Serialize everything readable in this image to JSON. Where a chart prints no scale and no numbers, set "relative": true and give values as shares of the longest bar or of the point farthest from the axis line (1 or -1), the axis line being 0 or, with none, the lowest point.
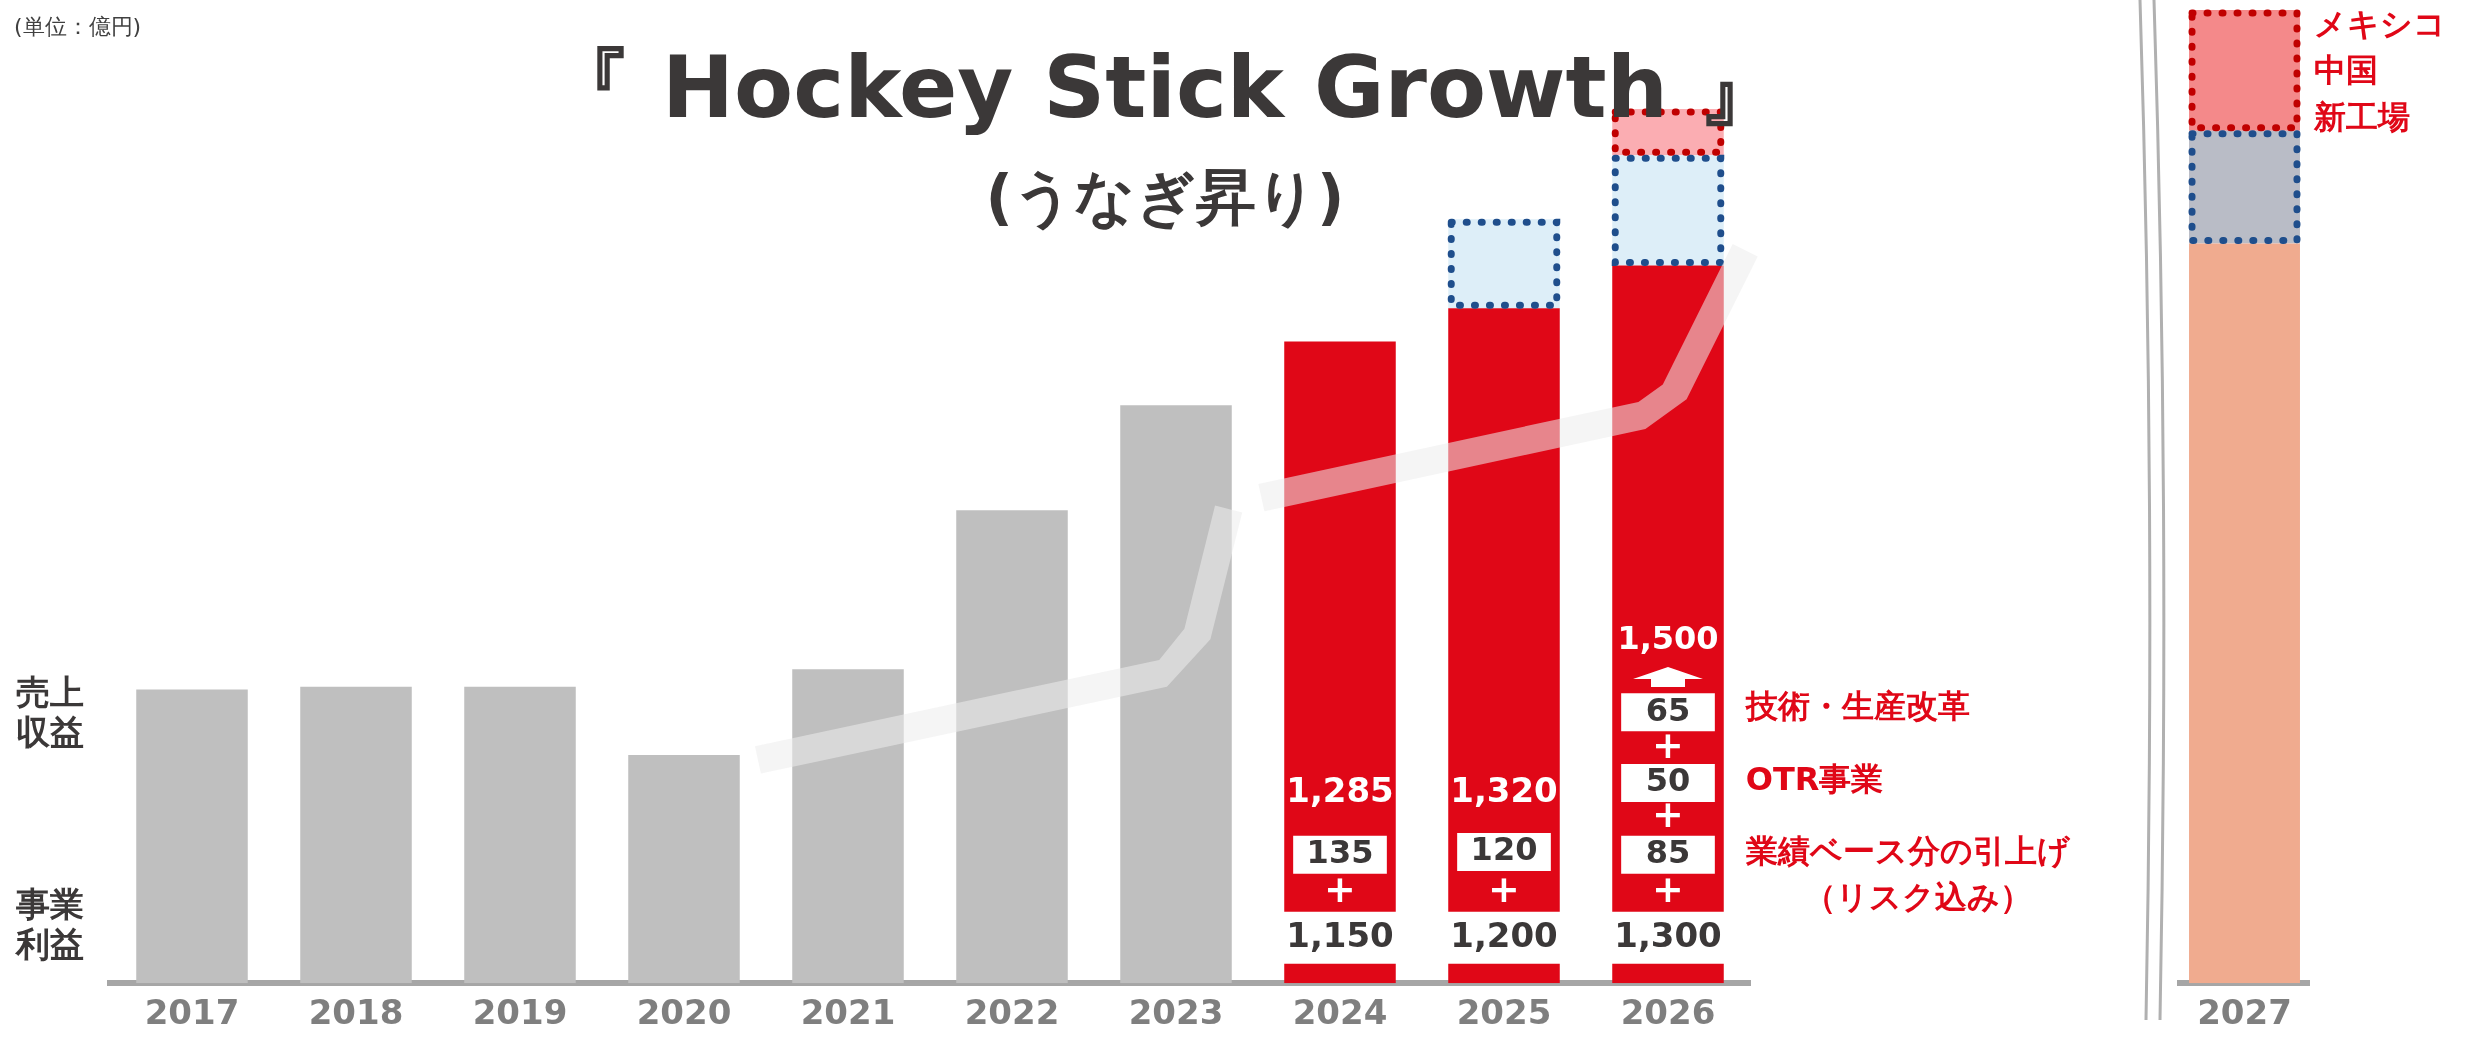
{
  "chart_data": [
    {
      "type": "bar",
      "stacked": true,
      "relative": true,
      "title": "『 Hockey Stick Growth 』",
      "subtitle": "(うなぎ昇り)",
      "categories": [
        "2017",
        "2018",
        "2019",
        "2020",
        "2021",
        "2022",
        "2023",
        "2024",
        "2025",
        "2026"
      ],
      "series": [
        {
          "colors": [
            "#bfbfbf",
            "#bfbfbf",
            "#bfbfbf",
            "#bfbfbf",
            "#bfbfbf",
            "#bfbfbf",
            "#bfbfbf",
            "#e00717",
            "#e00717",
            "#e00717"
          ],
          "values": [
            0.336,
            0.339,
            0.339,
            0.261,
            0.359,
            0.541,
            0.661,
            0.734,
            0.772,
            0.821
          ]
        },
        {
          "color": "#ddeef8",
          "values": [
            null,
            null,
            null,
            null,
            null,
            null,
            null,
            null,
            0.102,
            0.126
          ]
        },
        {
          "color": "#fbadb2",
          "values": [
            null,
            null,
            null,
            null,
            null,
            null,
            null,
            null,
            null,
            0.053
          ]
        }
      ],
      "annotations": [
        "(単位：億円)",
        "売上収益",
        "事業利益",
        "技術・生産改革",
        "OTR事業",
        "業績ベース分の引上げ",
        "（リスク込み）",
        "1,285",
        "135",
        "+",
        "1,150",
        "1,320",
        "120",
        "+",
        "1,200",
        "1,500",
        "65",
        "+",
        "50",
        "+",
        "85",
        "+",
        "1,300"
      ]
    },
    {
      "type": "bar",
      "stacked": true,
      "relative": true,
      "categories": [
        "2027"
      ],
      "series": [
        {
          "color": "#f0ab8f",
          "values": [
            0.76
          ]
        },
        {
          "color": "#b9bcc6",
          "values": [
            0.116
          ]
        },
        {
          "color": "#f4898a",
          "values": [
            0.124
          ]
        }
      ],
      "annotations": [
        "メキシコ",
        "中国",
        "新工場"
      ]
    }
  ]
}
